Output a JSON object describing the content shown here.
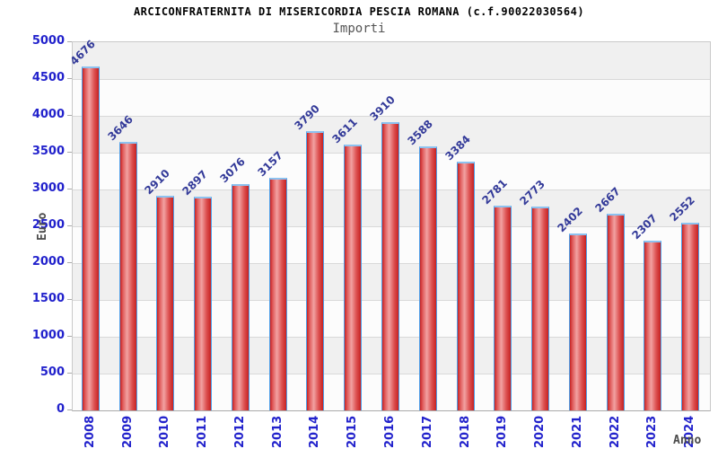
{
  "chart_data": {
    "type": "bar",
    "title": "ARCICONFRATERNITA DI MISERICORDIA PESCIA ROMANA (c.f.90022030564)",
    "subtitle": "Importi",
    "xlabel": "Anno",
    "ylabel": "Euro",
    "categories": [
      "2008",
      "2009",
      "2010",
      "2011",
      "2012",
      "2013",
      "2014",
      "2015",
      "2016",
      "2017",
      "2018",
      "2019",
      "2020",
      "2021",
      "2022",
      "2023",
      "2024"
    ],
    "values": [
      4676,
      3646,
      2910,
      2897,
      3076,
      3157,
      3790,
      3611,
      3910,
      3588,
      3384,
      2781,
      2773,
      2402,
      2667,
      2307,
      2552
    ],
    "ylim": [
      0,
      5000
    ],
    "yticks": [
      0,
      500,
      1000,
      1500,
      2000,
      2500,
      3000,
      3500,
      4000,
      4500,
      5000
    ],
    "grid": true,
    "legend": "none",
    "colors": {
      "title": "#000000",
      "subtitle": "#555555",
      "tick_labels": "#2222cc",
      "value_labels": "#333a99",
      "axis_titles": "#4a4a4a",
      "bar_edge": "#c62222",
      "bar_center": "#f2a2a2",
      "bar_border": "#4f9fe8",
      "band_gray": "#f0f0f0",
      "band_white": "#fcfcfc",
      "gridline": "#d9d9d9"
    }
  }
}
